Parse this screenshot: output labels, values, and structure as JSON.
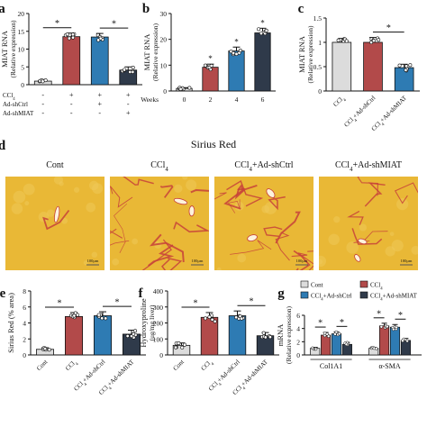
{
  "panel_letters": {
    "a": "a",
    "b": "b",
    "c": "c",
    "d": "d",
    "e": "e",
    "f": "f",
    "g": "g"
  },
  "micrograph_title": "Sirius Red",
  "micrograph_labels": [
    "Cont",
    "CCl4",
    "CCl4+Ad-shCtrl",
    "CCl4+Ad-shMIAT"
  ],
  "scale_bar_label": "100μm",
  "colors": {
    "gray": "#dcdcdc",
    "red": "#b24a4a",
    "blue": "#2e7bb3",
    "navy": "#2f3a4a",
    "stain_bg": "#e9b836",
    "stain_fiber": "#c7413a"
  },
  "chart_data": [
    {
      "id": "a",
      "type": "bar",
      "ylabel_main": "MIAT RNA",
      "ylabel_sub": "(Relative expression)",
      "ylim": [
        0,
        20
      ],
      "yticks": [
        0,
        5,
        10,
        15,
        20
      ],
      "row_labels": [
        "CCl4",
        "Ad-shCtrl",
        "Ad-shMIAT"
      ],
      "treatment_marks": [
        [
          "-",
          "+",
          "+",
          "+"
        ],
        [
          "-",
          "-",
          "+",
          "-"
        ],
        [
          "-",
          "-",
          "-",
          "+"
        ]
      ],
      "values": [
        1.0,
        13.5,
        13.4,
        4.1
      ],
      "errors": [
        0.3,
        1.0,
        1.0,
        0.9
      ],
      "colors": [
        "gray",
        "red",
        "blue",
        "navy"
      ],
      "significance": [
        {
          "from": 0,
          "to": 1,
          "label": "*"
        },
        {
          "from": 2,
          "to": 3,
          "label": "*"
        }
      ]
    },
    {
      "id": "b",
      "type": "bar",
      "ylabel_main": "MIAT RNA",
      "ylabel_sub": "(Relative expression)",
      "ylim": [
        0,
        30
      ],
      "yticks": [
        0,
        10,
        20,
        30
      ],
      "xlabel": "Weeks",
      "categories": [
        "0",
        "2",
        "4",
        "6"
      ],
      "values": [
        1.0,
        9.2,
        15.5,
        22.5
      ],
      "errors": [
        0.3,
        1.2,
        1.5,
        1.8
      ],
      "colors": [
        "gray",
        "red",
        "blue",
        "navy"
      ],
      "point_labels": [
        "",
        "*",
        "*",
        "*"
      ]
    },
    {
      "id": "c",
      "type": "bar",
      "ylabel_main": "MIAT RNA",
      "ylabel_sub": "(Relative expression)",
      "ylim": [
        0,
        1.5
      ],
      "yticks": [
        0.0,
        0.5,
        1.0,
        1.5
      ],
      "categories": [
        "CCl4",
        "CCl4+Ad-shCtrl",
        "CCl4+Ad-shMIAT"
      ],
      "values": [
        1.0,
        1.0,
        0.48
      ],
      "errors": [
        0.08,
        0.1,
        0.07
      ],
      "colors": [
        "gray",
        "red",
        "blue"
      ],
      "significance": [
        {
          "from": 1,
          "to": 2,
          "label": "*"
        }
      ]
    },
    {
      "id": "e",
      "type": "bar",
      "ylabel_main": "Sirius Red (% area)",
      "ylim": [
        0,
        8
      ],
      "yticks": [
        0,
        2,
        4,
        6,
        8
      ],
      "categories": [
        "Cont",
        "CCl4",
        "CCl4+Ad-shCtrl",
        "CCl4+Ad-shMIAT"
      ],
      "values": [
        0.7,
        4.8,
        4.9,
        2.6
      ],
      "errors": [
        0.2,
        0.5,
        0.5,
        0.5
      ],
      "colors": [
        "gray",
        "red",
        "blue",
        "navy"
      ],
      "significance": [
        {
          "from": 0,
          "to": 1,
          "label": "*"
        },
        {
          "from": 2,
          "to": 3,
          "label": "*"
        }
      ]
    },
    {
      "id": "f",
      "type": "bar",
      "ylabel_main": "Hydroxyproline",
      "ylabel_sub": "(ug/mg liver)",
      "ylim": [
        0,
        400
      ],
      "yticks": [
        0,
        100,
        200,
        300,
        400
      ],
      "categories": [
        "Cont",
        "CCl4",
        "CCl4+Ad-shCtrl",
        "CCl4+Ad-shMIAT"
      ],
      "values": [
        60,
        235,
        245,
        120
      ],
      "errors": [
        15,
        30,
        30,
        20
      ],
      "colors": [
        "gray",
        "red",
        "blue",
        "navy"
      ],
      "significance": [
        {
          "from": 0,
          "to": 1,
          "label": "*"
        },
        {
          "from": 2,
          "to": 3,
          "label": "*"
        }
      ]
    },
    {
      "id": "g",
      "type": "grouped-bar",
      "ylabel_main": "mRNA",
      "ylabel_sub": "(Relative expression)",
      "ylim": [
        0,
        6
      ],
      "yticks": [
        0,
        2,
        4,
        6
      ],
      "categories": [
        "Col1A1",
        "α-SMA"
      ],
      "legend": [
        "Cont",
        "CCl4",
        "CCl4+Ad-shCtrl",
        "CCl4+Ad-shMIAT"
      ],
      "colors": [
        "gray",
        "red",
        "blue",
        "navy"
      ],
      "series": [
        {
          "name": "Cont",
          "values": [
            1.0,
            1.0
          ],
          "errors": [
            0.15,
            0.15
          ]
        },
        {
          "name": "CCl4",
          "values": [
            3.0,
            4.4
          ],
          "errors": [
            0.4,
            0.4
          ]
        },
        {
          "name": "CCl4+Ad-shCtrl",
          "values": [
            3.2,
            4.2
          ],
          "errors": [
            0.3,
            0.4
          ]
        },
        {
          "name": "CCl4+Ad-shMIAT",
          "values": [
            1.6,
            2.2
          ],
          "errors": [
            0.3,
            0.3
          ]
        }
      ],
      "significance": [
        {
          "group": 0,
          "from": 0,
          "to": 1,
          "label": "*"
        },
        {
          "group": 0,
          "from": 2,
          "to": 3,
          "label": "*"
        },
        {
          "group": 1,
          "from": 0,
          "to": 1,
          "label": "*"
        },
        {
          "group": 1,
          "from": 2,
          "to": 3,
          "label": "*"
        }
      ]
    }
  ]
}
